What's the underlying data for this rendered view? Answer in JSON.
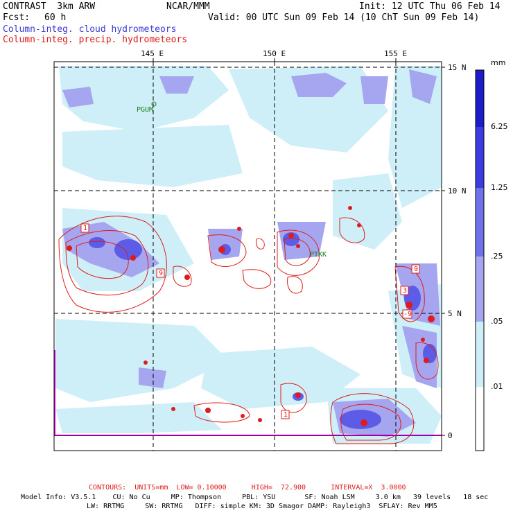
{
  "header": {
    "model": "CONTRAST  3km ARW",
    "org": "NCAR/MMM",
    "init": "Init: 12 UTC Thu 06 Feb 14",
    "fcst_label": "Fcst:",
    "fcst_value": "60 h",
    "valid": "Valid: 00 UTC Sun 09 Feb 14 (10 ChT Sun 09 Feb 14)",
    "field1": "Column-integ. cloud hydrometeors",
    "field2": "Column-integ. precip. hydrometeors"
  },
  "map": {
    "lon_labels": [
      "145 E",
      "150 E",
      "155 E"
    ],
    "lat_labels": [
      "15 N",
      "10 N",
      "5 N",
      "0"
    ],
    "stations": [
      "PGUM",
      "PTKK"
    ],
    "box_labels": [
      "1",
      "9",
      "9",
      "3",
      "-9",
      "1"
    ],
    "colors": {
      "cloud_light": "#c8ecf8",
      "cloud_mid": "#a0a4ee",
      "cloud_dark": "#5c5ce6",
      "precip": "#e01b1b",
      "station": "#1a7a1a"
    }
  },
  "colorbar": {
    "unit": "mm",
    "labels": [
      "6.25",
      "1.25",
      ".25",
      ".05",
      ".01"
    ],
    "colors": [
      "#1c1cc8",
      "#3c3ce0",
      "#7070ea",
      "#a6a6f0",
      "#cfeff8",
      "#ffffff"
    ]
  },
  "footer": {
    "contours": "CONTOURS:  UNITS=mm  LOW= 0.10000      HIGH=  72.900      INTERVAL=X  3.0000",
    "info1": "Model Info: V3.5.1    CU: No Cu     MP: Thompson     PBL: YSU       SF: Noah LSM     3.0 km   39 levels   18 sec",
    "info2": "LW: RRTMG     SW: RRTMG   DIFF: simple KM: 3D Smagor DAMP: Rayleigh3  SFLAY: Rev MM5"
  }
}
